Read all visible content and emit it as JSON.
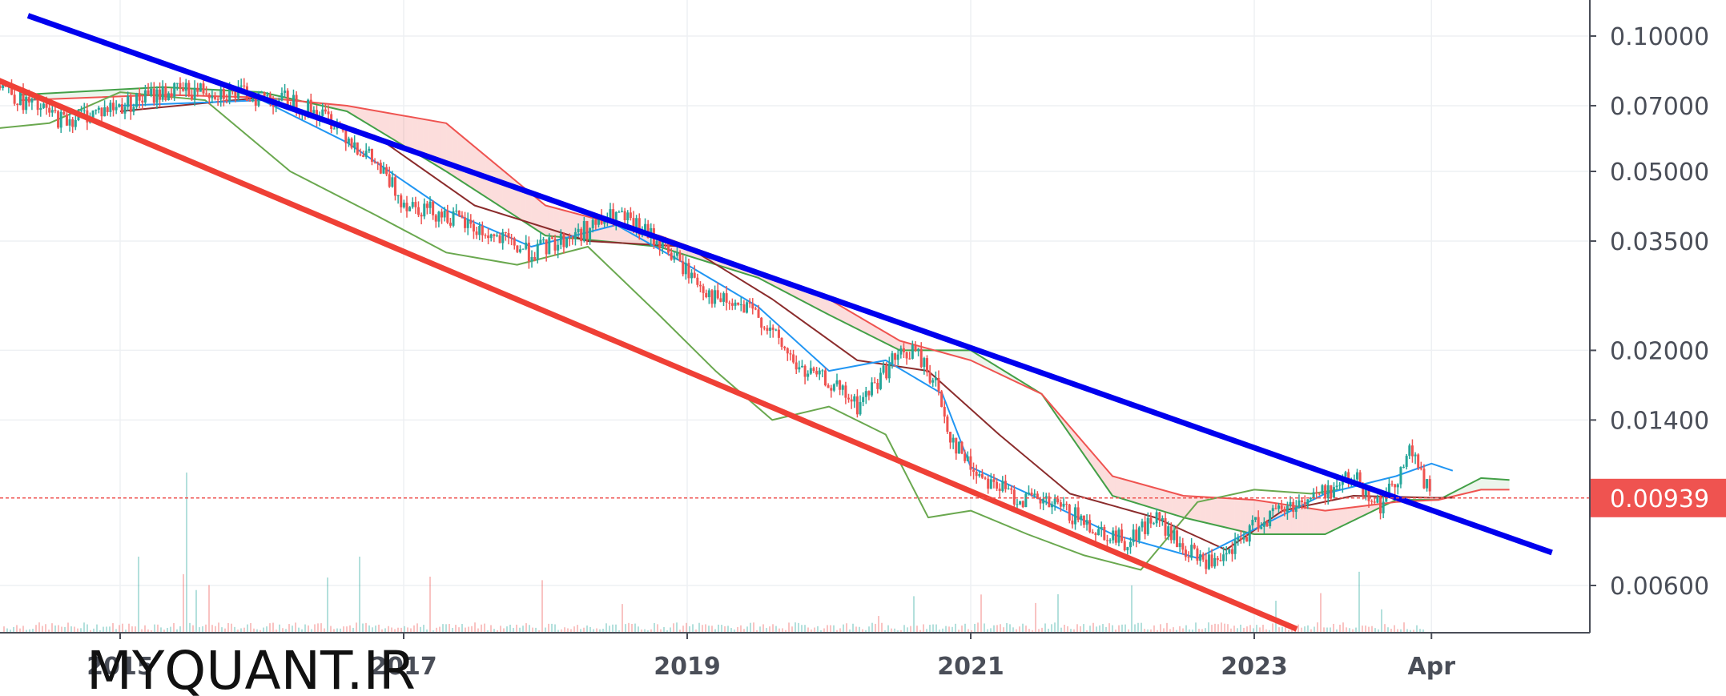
{
  "chart_data": {
    "type": "candlestick",
    "scale": "log",
    "grid": true,
    "price_axis": {
      "ticks": [
        {
          "value": 0.1,
          "label": "0.10000"
        },
        {
          "value": 0.07,
          "label": "0.07000"
        },
        {
          "value": 0.05,
          "label": "0.05000"
        },
        {
          "value": 0.035,
          "label": "0.03500"
        },
        {
          "value": 0.02,
          "label": "0.02000"
        },
        {
          "value": 0.014,
          "label": "0.01400"
        },
        {
          "value": 0.006,
          "label": "0.00600"
        }
      ]
    },
    "time_axis": {
      "ticks": [
        {
          "value": 2015,
          "label": "2015"
        },
        {
          "value": 2017,
          "label": "2017"
        },
        {
          "value": 2019,
          "label": "2019"
        },
        {
          "value": 2021,
          "label": "2021"
        },
        {
          "value": 2023,
          "label": "2023"
        },
        {
          "value": 2024.25,
          "label": "Apr"
        }
      ]
    },
    "current_price": {
      "value": 0.00939,
      "label": "0.00939",
      "color": "#ef5350"
    },
    "trendlines": [
      {
        "name": "resistance",
        "color": "#0000ee",
        "from": [
          2014.35,
          0.111
        ],
        "to": [
          2025.1,
          0.0071
        ]
      },
      {
        "name": "support",
        "color": "#ef4036",
        "from": [
          2014.05,
          0.082
        ],
        "to": [
          2023.3,
          0.0048
        ]
      }
    ],
    "series": [
      {
        "name": "close",
        "points": [
          [
            2014.05,
            0.085
          ],
          [
            2014.3,
            0.072
          ],
          [
            2014.6,
            0.065
          ],
          [
            2015.0,
            0.07
          ],
          [
            2015.3,
            0.075
          ],
          [
            2015.6,
            0.076
          ],
          [
            2015.9,
            0.074
          ],
          [
            2016.2,
            0.072
          ],
          [
            2016.5,
            0.065
          ],
          [
            2016.8,
            0.052
          ],
          [
            2017.0,
            0.043
          ],
          [
            2017.3,
            0.04
          ],
          [
            2017.6,
            0.036
          ],
          [
            2017.9,
            0.033
          ],
          [
            2018.2,
            0.036
          ],
          [
            2018.5,
            0.04
          ],
          [
            2018.8,
            0.035
          ],
          [
            2019.0,
            0.03
          ],
          [
            2019.2,
            0.026
          ],
          [
            2019.5,
            0.024
          ],
          [
            2019.8,
            0.018
          ],
          [
            2020.0,
            0.017
          ],
          [
            2020.2,
            0.015
          ],
          [
            2020.45,
            0.019
          ],
          [
            2020.6,
            0.02
          ],
          [
            2020.75,
            0.017
          ],
          [
            2020.85,
            0.013
          ],
          [
            2021.0,
            0.011
          ],
          [
            2021.3,
            0.0095
          ],
          [
            2021.6,
            0.009
          ],
          [
            2021.9,
            0.008
          ],
          [
            2022.1,
            0.0075
          ],
          [
            2022.3,
            0.0085
          ],
          [
            2022.5,
            0.0072
          ],
          [
            2022.75,
            0.0066
          ],
          [
            2023.0,
            0.0082
          ],
          [
            2023.2,
            0.0089
          ],
          [
            2023.5,
            0.0097
          ],
          [
            2023.7,
            0.0105
          ],
          [
            2023.9,
            0.009
          ],
          [
            2024.1,
            0.012
          ],
          [
            2024.25,
            0.0094
          ]
        ]
      },
      {
        "name": "tenkan",
        "color": "#2196f3",
        "points": [
          [
            2015.0,
            0.07
          ],
          [
            2016.0,
            0.072
          ],
          [
            2016.6,
            0.058
          ],
          [
            2017.3,
            0.041
          ],
          [
            2017.9,
            0.034
          ],
          [
            2018.5,
            0.038
          ],
          [
            2019.0,
            0.031
          ],
          [
            2019.5,
            0.025
          ],
          [
            2020.0,
            0.018
          ],
          [
            2020.4,
            0.019
          ],
          [
            2020.8,
            0.016
          ],
          [
            2021.0,
            0.011
          ],
          [
            2021.5,
            0.0093
          ],
          [
            2022.0,
            0.0078
          ],
          [
            2022.6,
            0.0069
          ],
          [
            2023.0,
            0.008
          ],
          [
            2023.5,
            0.0096
          ],
          [
            2024.0,
            0.0105
          ],
          [
            2024.25,
            0.0112
          ],
          [
            2024.4,
            0.0108
          ]
        ]
      },
      {
        "name": "kijun",
        "color": "#8b2c2c",
        "points": [
          [
            2015.0,
            0.068
          ],
          [
            2016.0,
            0.073
          ],
          [
            2016.8,
            0.06
          ],
          [
            2017.5,
            0.042
          ],
          [
            2018.3,
            0.035
          ],
          [
            2019.0,
            0.034
          ],
          [
            2019.6,
            0.026
          ],
          [
            2020.2,
            0.019
          ],
          [
            2020.7,
            0.018
          ],
          [
            2021.2,
            0.013
          ],
          [
            2021.7,
            0.0096
          ],
          [
            2022.3,
            0.0085
          ],
          [
            2022.8,
            0.0072
          ],
          [
            2023.2,
            0.0088
          ],
          [
            2023.7,
            0.0095
          ],
          [
            2024.25,
            0.0094
          ],
          [
            2024.4,
            0.0094
          ]
        ]
      },
      {
        "name": "lagging",
        "color": "#6aa84f",
        "points": [
          [
            2014.05,
            0.062
          ],
          [
            2014.5,
            0.064
          ],
          [
            2015.0,
            0.075
          ],
          [
            2015.6,
            0.072
          ],
          [
            2016.2,
            0.05
          ],
          [
            2016.8,
            0.04
          ],
          [
            2017.3,
            0.033
          ],
          [
            2017.8,
            0.031
          ],
          [
            2018.3,
            0.034
          ],
          [
            2018.8,
            0.024
          ],
          [
            2019.2,
            0.018
          ],
          [
            2019.6,
            0.014
          ],
          [
            2020.0,
            0.015
          ],
          [
            2020.4,
            0.013
          ],
          [
            2020.7,
            0.0085
          ],
          [
            2021.0,
            0.0088
          ],
          [
            2021.4,
            0.0078
          ],
          [
            2021.8,
            0.007
          ],
          [
            2022.2,
            0.0065
          ],
          [
            2022.6,
            0.0092
          ],
          [
            2023.0,
            0.0098
          ],
          [
            2023.4,
            0.0096
          ],
          [
            2023.6,
            0.0098
          ]
        ]
      },
      {
        "name": "span-a",
        "color": "#43a047",
        "points": [
          [
            2014.3,
            0.074
          ],
          [
            2015.3,
            0.077
          ],
          [
            2016.0,
            0.075
          ],
          [
            2016.6,
            0.068
          ],
          [
            2017.3,
            0.05
          ],
          [
            2018.0,
            0.036
          ],
          [
            2018.8,
            0.034
          ],
          [
            2019.5,
            0.029
          ],
          [
            2020.0,
            0.024
          ],
          [
            2020.5,
            0.02
          ],
          [
            2021.0,
            0.02
          ],
          [
            2021.5,
            0.016
          ],
          [
            2022.0,
            0.0095
          ],
          [
            2022.5,
            0.0085
          ],
          [
            2023.0,
            0.0078
          ],
          [
            2023.5,
            0.0078
          ],
          [
            2024.0,
            0.0093
          ],
          [
            2024.3,
            0.0093
          ],
          [
            2024.6,
            0.0104
          ],
          [
            2024.8,
            0.0103
          ]
        ]
      },
      {
        "name": "span-b",
        "color": "#ef5350",
        "points": [
          [
            2014.3,
            0.072
          ],
          [
            2015.3,
            0.074
          ],
          [
            2016.0,
            0.073
          ],
          [
            2016.6,
            0.07
          ],
          [
            2017.3,
            0.064
          ],
          [
            2018.0,
            0.042
          ],
          [
            2018.8,
            0.036
          ],
          [
            2019.5,
            0.03
          ],
          [
            2020.0,
            0.026
          ],
          [
            2020.5,
            0.021
          ],
          [
            2021.0,
            0.019
          ],
          [
            2021.5,
            0.016
          ],
          [
            2022.0,
            0.0105
          ],
          [
            2022.5,
            0.0095
          ],
          [
            2023.0,
            0.0093
          ],
          [
            2023.5,
            0.0088
          ],
          [
            2024.0,
            0.0092
          ],
          [
            2024.3,
            0.0093
          ],
          [
            2024.6,
            0.0098
          ],
          [
            2024.8,
            0.0098
          ]
        ]
      }
    ]
  },
  "watermark": {
    "text": "MYQUANT.IR"
  }
}
